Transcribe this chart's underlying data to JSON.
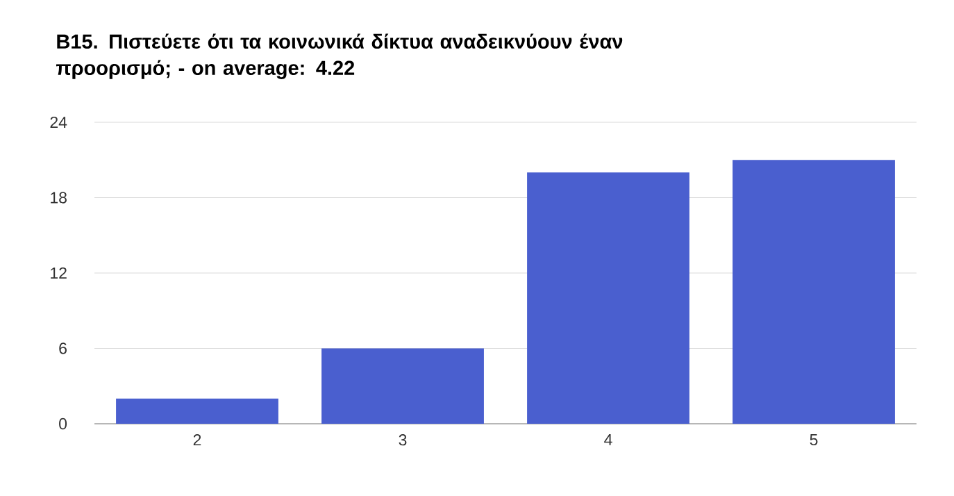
{
  "chart_data": {
    "type": "bar",
    "title": "B15. Πιστεύετε ότι τα κοινωνικά δίκτυα αναδεικνύουν έναν προορισμό; - on average: 4.22",
    "categories": [
      "2",
      "3",
      "4",
      "5"
    ],
    "values": [
      2,
      6,
      20,
      21
    ],
    "color": "#4a5fcf",
    "ylim": [
      0,
      24
    ],
    "yticks": [
      0,
      6,
      12,
      18,
      24
    ],
    "grid": "y"
  }
}
